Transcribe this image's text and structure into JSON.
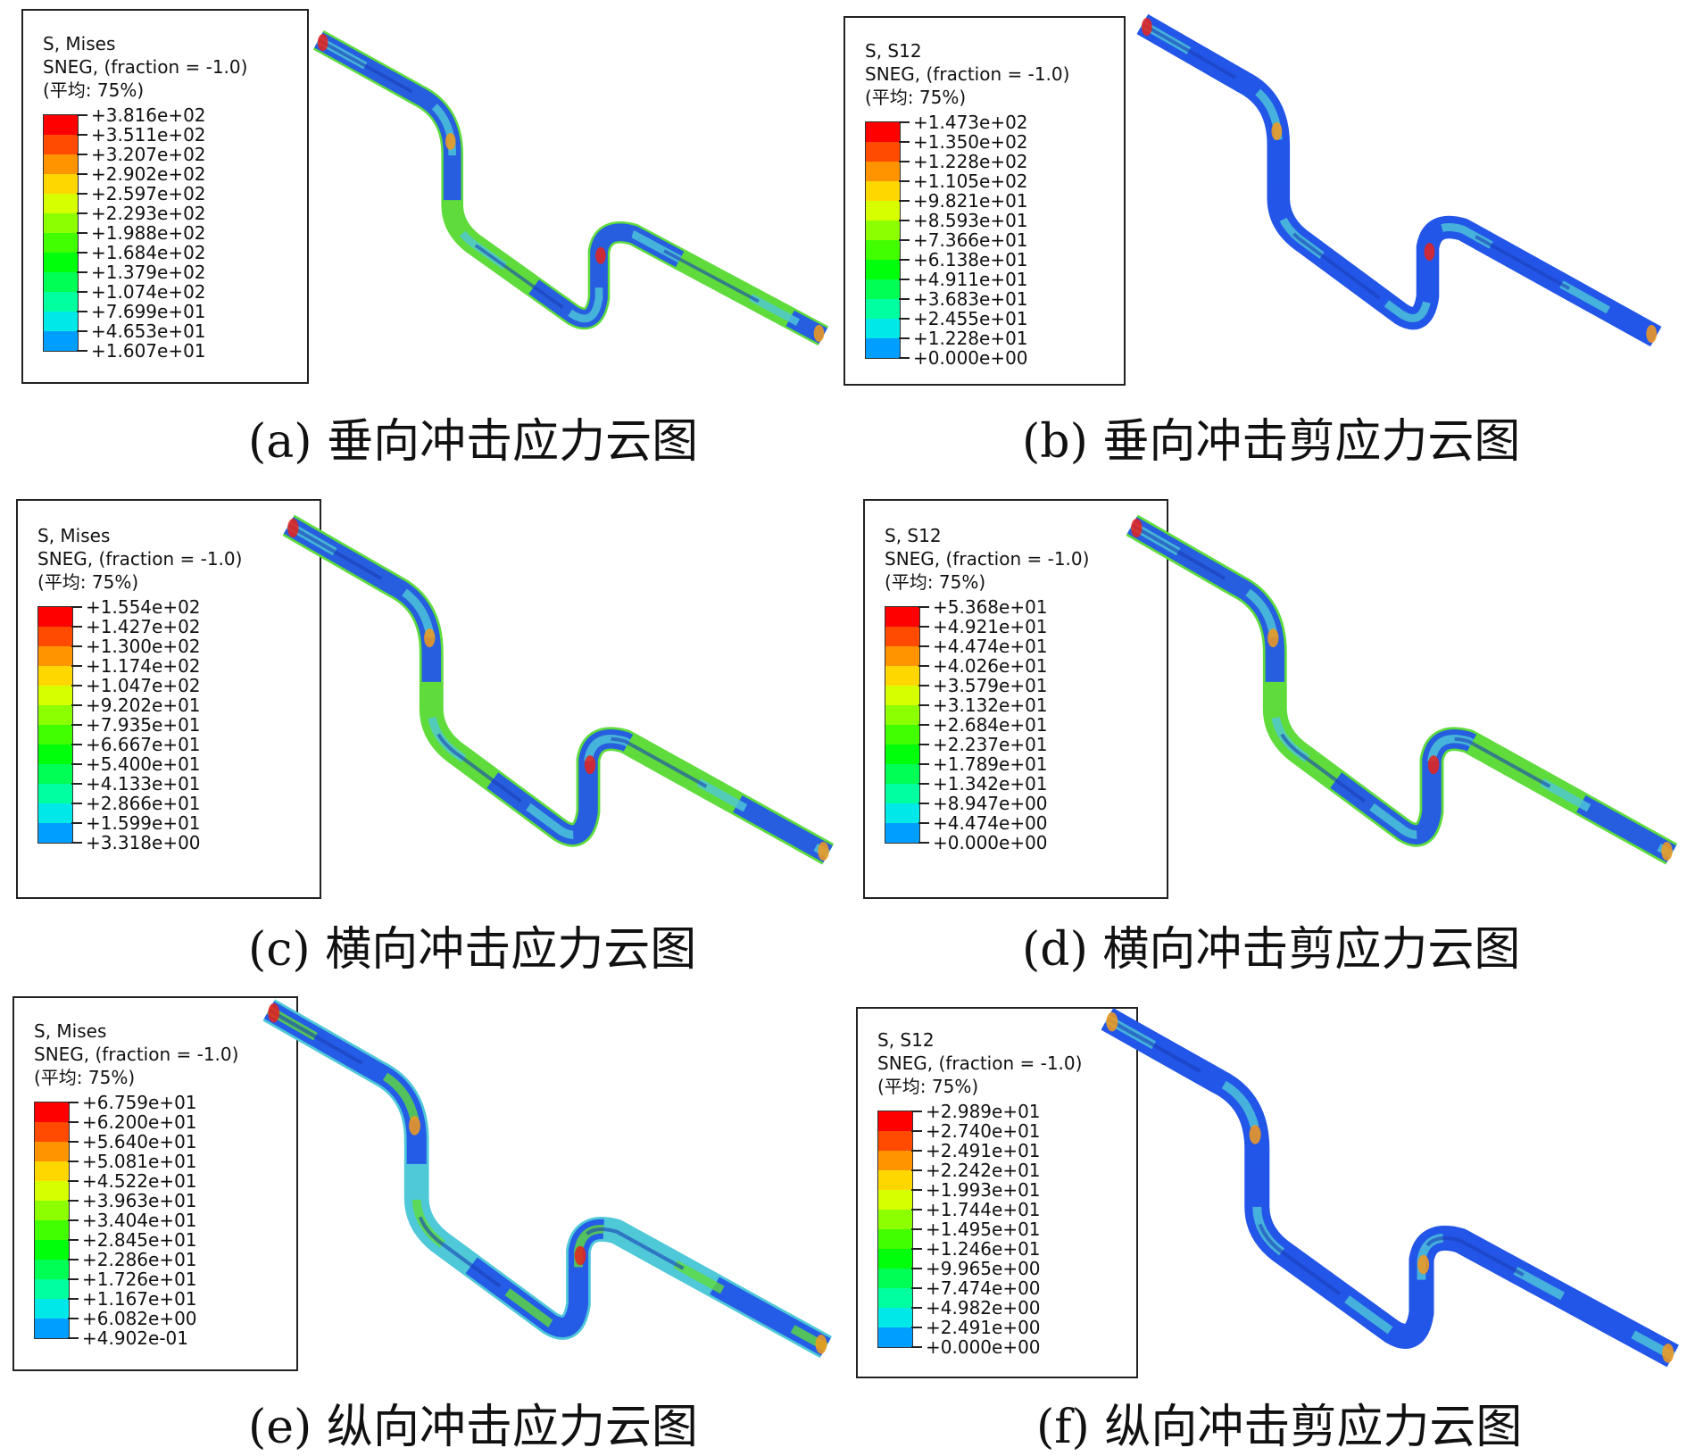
{
  "colors": {
    "scale": [
      "#ff0000",
      "#ff4a00",
      "#ff9400",
      "#ffd700",
      "#d6ff00",
      "#8cff00",
      "#42ff00",
      "#00ff0a",
      "#00ff54",
      "#00ff9e",
      "#00e8e8",
      "#009eff",
      "#0054ff"
    ],
    "pipe_base_blue": "#2356e8",
    "pipe_green": "#5fdc3c",
    "pipe_cyan": "#4fc8d8",
    "pipe_red": "#e8221a",
    "pipe_orange": "#f49a1a"
  },
  "panels": [
    {
      "id": "a",
      "legend": {
        "line1": "S, Mises",
        "line2": "SNEG, (fraction = -1.0)",
        "line3": "(平均: 75%)",
        "ticks": [
          "+3.816e+02",
          "+3.511e+02",
          "+3.207e+02",
          "+2.902e+02",
          "+2.597e+02",
          "+2.293e+02",
          "+1.988e+02",
          "+1.684e+02",
          "+1.379e+02",
          "+1.074e+02",
          "+7.699e+01",
          "+4.653e+01",
          "+1.607e+01"
        ]
      },
      "caption": "(a) 垂向冲击应力云图"
    },
    {
      "id": "b",
      "legend": {
        "line1": "S, S12",
        "line2": "SNEG, (fraction = -1.0)",
        "line3": "(平均: 75%)",
        "ticks": [
          "+1.473e+02",
          "+1.350e+02",
          "+1.228e+02",
          "+1.105e+02",
          "+9.821e+01",
          "+8.593e+01",
          "+7.366e+01",
          "+6.138e+01",
          "+4.911e+01",
          "+3.683e+01",
          "+2.455e+01",
          "+1.228e+01",
          "+0.000e+00"
        ]
      },
      "caption": "(b) 垂向冲击剪应力云图"
    },
    {
      "id": "c",
      "legend": {
        "line1": "S, Mises",
        "line2": "SNEG, (fraction = -1.0)",
        "line3": "(平均: 75%)",
        "ticks": [
          "+1.554e+02",
          "+1.427e+02",
          "+1.300e+02",
          "+1.174e+02",
          "+1.047e+02",
          "+9.202e+01",
          "+7.935e+01",
          "+6.667e+01",
          "+5.400e+01",
          "+4.133e+01",
          "+2.866e+01",
          "+1.599e+01",
          "+3.318e+00"
        ]
      },
      "caption": "(c) 横向冲击应力云图"
    },
    {
      "id": "d",
      "legend": {
        "line1": "S, S12",
        "line2": "SNEG, (fraction = -1.0)",
        "line3": "(平均: 75%)",
        "ticks": [
          "+5.368e+01",
          "+4.921e+01",
          "+4.474e+01",
          "+4.026e+01",
          "+3.579e+01",
          "+3.132e+01",
          "+2.684e+01",
          "+2.237e+01",
          "+1.789e+01",
          "+1.342e+01",
          "+8.947e+00",
          "+4.474e+00",
          "+0.000e+00"
        ]
      },
      "caption": "(d) 横向冲击剪应力云图"
    },
    {
      "id": "e",
      "legend": {
        "line1": "S, Mises",
        "line2": "SNEG, (fraction = -1.0)",
        "line3": "(平均: 75%)",
        "ticks": [
          "+6.759e+01",
          "+6.200e+01",
          "+5.640e+01",
          "+5.081e+01",
          "+4.522e+01",
          "+3.963e+01",
          "+3.404e+01",
          "+2.845e+01",
          "+2.286e+01",
          "+1.726e+01",
          "+1.167e+01",
          "+6.082e+00",
          "+4.902e-01"
        ]
      },
      "caption": "(e) 纵向冲击应力云图"
    },
    {
      "id": "f",
      "legend": {
        "line1": "S, S12",
        "line2": "SNEG, (fraction = -1.0)",
        "line3": "(平均: 75%)",
        "ticks": [
          "+2.989e+01",
          "+2.740e+01",
          "+2.491e+01",
          "+2.242e+01",
          "+1.993e+01",
          "+1.744e+01",
          "+1.495e+01",
          "+1.246e+01",
          "+9.965e+00",
          "+7.474e+00",
          "+4.982e+00",
          "+2.491e+00",
          "+0.000e+00"
        ]
      },
      "caption": "(f) 纵向冲击剪应力云图"
    }
  ]
}
